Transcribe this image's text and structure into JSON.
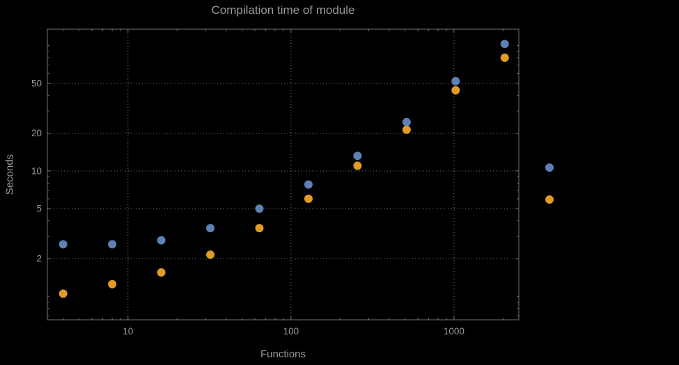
{
  "chart_data": {
    "type": "scatter",
    "title": "Compilation time of module",
    "xlabel": "Functions",
    "ylabel": "Seconds",
    "xscale": "log",
    "yscale": "log",
    "xlim": [
      3.2,
      2500
    ],
    "ylim": [
      0.65,
      135
    ],
    "grid": "dotted",
    "x": [
      4,
      8,
      16,
      32,
      64,
      128,
      256,
      512,
      1024,
      2048
    ],
    "series": [
      {
        "name": "blue",
        "color": "#5e81b5",
        "values": [
          2.6,
          2.6,
          2.8,
          3.5,
          5.0,
          7.8,
          13.2,
          24.5,
          52,
          103
        ]
      },
      {
        "name": "orange",
        "color": "#e09c24",
        "values": [
          1.05,
          1.25,
          1.55,
          2.15,
          3.5,
          6.0,
          11.0,
          21.3,
          44,
          80
        ]
      }
    ],
    "x_ticks": [
      10,
      100,
      1000
    ],
    "x_tick_labels": [
      "10",
      "100",
      "1000"
    ],
    "y_ticks": [
      2,
      5,
      10,
      20,
      50
    ],
    "y_tick_labels": [
      "2",
      "5",
      "10",
      "20",
      "50"
    ],
    "legend_markers": [
      {
        "color": "#5e81b5"
      },
      {
        "color": "#e09c24"
      }
    ],
    "colors": {
      "background": "#000000",
      "frame": "#757575",
      "grid": "#7a7a7a",
      "text": "#9a9a9a"
    },
    "marker_radius": 6
  }
}
